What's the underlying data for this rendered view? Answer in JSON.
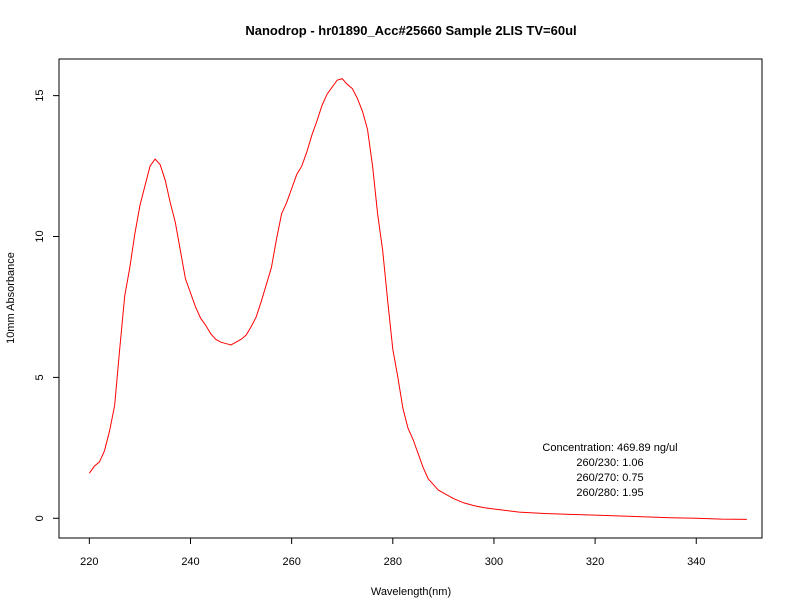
{
  "chart_data": {
    "type": "line",
    "title": "Nanodrop - hr01890_Acc#25660 Sample 2LIS  TV=60ul",
    "xlabel": "Wavelength(nm)",
    "ylabel": "10mm Absorbance",
    "xlim": [
      214,
      353
    ],
    "ylim": [
      -0.7,
      16.3
    ],
    "xticks": [
      220,
      240,
      260,
      280,
      300,
      320,
      340
    ],
    "yticks": [
      0,
      5,
      10,
      15
    ],
    "grid": false,
    "line_color": "#ff0000",
    "series": [
      {
        "x": [
          220,
          221,
          222,
          223,
          224,
          225,
          226,
          227,
          228,
          229,
          230,
          231,
          232,
          233,
          234,
          235,
          236,
          237,
          238,
          239,
          240,
          241,
          242,
          243,
          244,
          245,
          246,
          247,
          248,
          249,
          250,
          251,
          252,
          253,
          254,
          255,
          256,
          257,
          258,
          259,
          260,
          261,
          262,
          263,
          264,
          265,
          266,
          267,
          268,
          269,
          270,
          271,
          272,
          273,
          274,
          275,
          276,
          277,
          278,
          279,
          280,
          281,
          282,
          283,
          284,
          285,
          286,
          287,
          288,
          289,
          290,
          292,
          294,
          296,
          298,
          300,
          305,
          310,
          315,
          320,
          325,
          330,
          335,
          340,
          345,
          350
        ],
        "y": [
          1.6,
          1.85,
          2.0,
          2.4,
          3.1,
          4.0,
          6.0,
          7.9,
          8.9,
          10.1,
          11.1,
          11.8,
          12.5,
          12.75,
          12.55,
          12.0,
          11.2,
          10.5,
          9.5,
          8.5,
          8.0,
          7.5,
          7.1,
          6.85,
          6.55,
          6.35,
          6.25,
          6.2,
          6.15,
          6.25,
          6.35,
          6.5,
          6.8,
          7.15,
          7.7,
          8.3,
          8.9,
          9.9,
          10.8,
          11.2,
          11.7,
          12.2,
          12.5,
          13.0,
          13.6,
          14.1,
          14.65,
          15.05,
          15.3,
          15.55,
          15.6,
          15.4,
          15.25,
          14.9,
          14.45,
          13.8,
          12.5,
          10.8,
          9.5,
          7.7,
          6.0,
          5.0,
          3.9,
          3.2,
          2.8,
          2.3,
          1.8,
          1.4,
          1.2,
          1.0,
          0.9,
          0.7,
          0.55,
          0.45,
          0.38,
          0.33,
          0.22,
          0.17,
          0.14,
          0.11,
          0.08,
          0.05,
          0.02,
          0.0,
          -0.03,
          -0.04
        ]
      }
    ],
    "annotations": [
      "Concentration: 469.89 ng/ul",
      "260/230: 1.06",
      "260/270: 0.75",
      "260/280: 1.95"
    ]
  }
}
